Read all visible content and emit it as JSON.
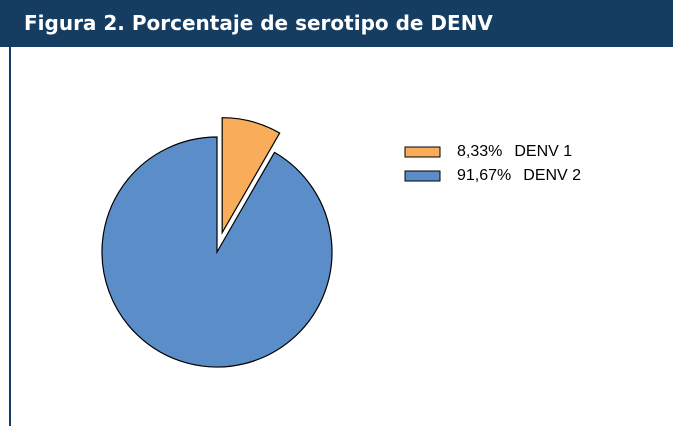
{
  "chart_data": {
    "type": "pie",
    "title": "Figura 2. Porcentaje de serotipo de DENV",
    "categories": [
      "DENV 1",
      "DENV 2"
    ],
    "values": [
      8.33,
      91.67
    ],
    "value_labels": [
      "8,33%",
      "91,67%"
    ],
    "colors": [
      "#f9ad5b",
      "#5b8ec9"
    ],
    "explode": [
      true,
      false
    ],
    "legend": "right"
  }
}
